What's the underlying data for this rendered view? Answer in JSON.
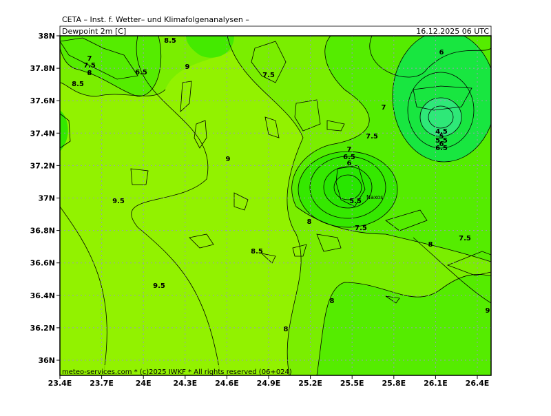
{
  "header": {
    "title": "CETA – Inst. f. Wetter– und Klimafolgenanalysen –",
    "variable": "Dewpoint 2m [C]",
    "datetime": "16.12.2025 06 UTC"
  },
  "footer": "meteo-services.com * (c)2025 IWKF * All rights reserved (06+024)",
  "map": {
    "lat_labels": [
      "38N",
      "37.8N",
      "37.6N",
      "37.4N",
      "37.2N",
      "37N",
      "36.8N",
      "36.6N",
      "36.4N",
      "36.2N",
      "36N"
    ],
    "lon_labels": [
      "23.4E",
      "23.7E",
      "24E",
      "24.3E",
      "24.6E",
      "24.9E",
      "25.2E",
      "25.5E",
      "25.8E",
      "26.1E",
      "26.4E"
    ],
    "contour_labels": [
      "8.5",
      "7",
      "7.5",
      "8",
      "6.5",
      "8.5",
      "9",
      "7.5",
      "6",
      "7",
      "7.5",
      "4.5",
      "5",
      "5.5",
      "6",
      "6.5",
      "7",
      "6.5",
      "6",
      "9",
      "5.5",
      "9.5",
      "8",
      "7.5",
      "8",
      "7.5",
      "8.5",
      "9.5",
      "8",
      "9",
      "8"
    ],
    "place_labels": [
      "Naxos"
    ]
  }
}
